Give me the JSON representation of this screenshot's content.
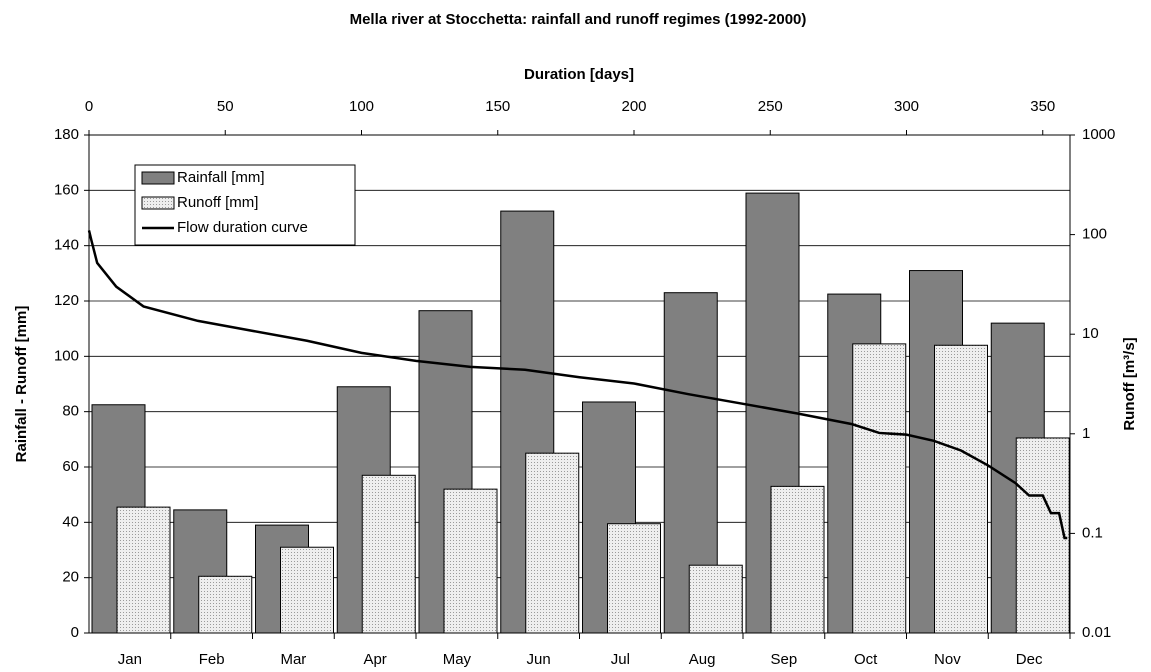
{
  "chart_data": {
    "type": "bar",
    "title": "Mella river at Stocchetta: rainfall and runoff regimes (1992-2000)",
    "ylabel": "Rainfall - Runoff [mm]",
    "y2label": "Runoff [m³/s]",
    "x2label": "Duration [days]",
    "categories": [
      "Jan",
      "Feb",
      "Mar",
      "Apr",
      "May",
      "Jun",
      "Jul",
      "Aug",
      "Sep",
      "Oct",
      "Nov",
      "Dec"
    ],
    "ylim": [
      0,
      180
    ],
    "yticks": [
      0,
      20,
      40,
      60,
      80,
      100,
      120,
      140,
      160,
      180
    ],
    "y2lim": [
      0.01,
      1000
    ],
    "y2scale": "log",
    "y2ticks": [
      0.01,
      0.1,
      1,
      10,
      100,
      1000
    ],
    "x2lim": [
      0,
      360
    ],
    "x2ticks": [
      0,
      50,
      100,
      150,
      200,
      250,
      300,
      350
    ],
    "grid": true,
    "legend": "upper left",
    "series": [
      {
        "name": "Rainfall [mm]",
        "type": "bar",
        "color": "#808080",
        "values": [
          82.5,
          44.5,
          39,
          89,
          116.5,
          152.5,
          83.5,
          123,
          159,
          122.5,
          131,
          112
        ]
      },
      {
        "name": "Runoff [mm]",
        "type": "bar",
        "color": "#e4e4e4",
        "values": [
          45.5,
          20.5,
          31,
          57,
          52,
          65,
          39.5,
          24.5,
          53,
          104.5,
          104,
          70.5
        ]
      },
      {
        "name": "Flow duration curve",
        "type": "line",
        "axis": "y2",
        "color": "#000000",
        "x": [
          0,
          1,
          3,
          10,
          20,
          40,
          60,
          80,
          100,
          120,
          140,
          160,
          180,
          200,
          220,
          240,
          260,
          280,
          290,
          300,
          310,
          320,
          330,
          340,
          345,
          350,
          353,
          356,
          358,
          359
        ],
        "values": [
          110,
          85,
          52,
          30,
          19,
          13.6,
          10.8,
          8.6,
          6.5,
          5.4,
          4.7,
          4.4,
          3.7,
          3.2,
          2.5,
          2.0,
          1.6,
          1.25,
          1.02,
          0.98,
          0.85,
          0.68,
          0.48,
          0.32,
          0.24,
          0.24,
          0.16,
          0.16,
          0.09,
          0.09
        ]
      }
    ]
  }
}
